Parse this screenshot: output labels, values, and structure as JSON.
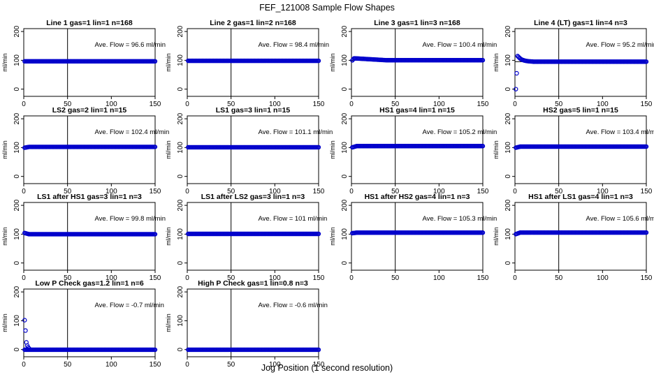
{
  "figure": {
    "title": "FEF_121008  Sample Flow Shapes",
    "xlabel": "Jog Position (1 second resolution)"
  },
  "colors": {
    "points": "#0000cc",
    "axis": "#000000"
  },
  "chart_data": [
    {
      "type": "scatter",
      "title": "Line 1 gas=1 lin=1 n=168",
      "annotation": "Ave. Flow =  96.6  ml/min",
      "ylabel": "ml/min",
      "xlim": [
        0,
        150
      ],
      "ylim": [
        -25,
        210
      ],
      "xticks": [
        0,
        50,
        100,
        150
      ],
      "yticks": [
        0,
        100,
        200
      ],
      "mean_line": 96.6,
      "reference_line": 50,
      "shape": {
        "flat": 96.6,
        "start": null,
        "peak": null
      }
    },
    {
      "type": "scatter",
      "title": "Line 2 gas=1 lin=2 n=168",
      "annotation": "Ave. Flow =  98.4  ml/min",
      "ylabel": "ml/min",
      "xlim": [
        0,
        150
      ],
      "ylim": [
        -25,
        210
      ],
      "xticks": [
        0,
        50,
        100,
        150
      ],
      "yticks": [
        0,
        100,
        200
      ],
      "mean_line": 98.4,
      "reference_line": 50,
      "shape": {
        "flat": 98.4,
        "start": null,
        "peak": null
      }
    },
    {
      "type": "scatter",
      "title": "Line 3 gas=1 lin=3 n=168",
      "annotation": "Ave. Flow =  100.4  ml/min",
      "ylabel": "ml/min",
      "xlim": [
        0,
        150
      ],
      "ylim": [
        -25,
        210
      ],
      "xticks": [
        0,
        50,
        100,
        150
      ],
      "yticks": [
        0,
        100,
        200
      ],
      "mean_line": 100.4,
      "reference_line": 50,
      "shape": {
        "flat": 100.4,
        "start": 96,
        "peak": 107
      }
    },
    {
      "type": "scatter",
      "title": "Line 4 (LT) gas=1 lin=4 n=3",
      "annotation": "Ave. Flow =  95.2  ml/min",
      "ylabel": "ml/min",
      "xlim": [
        0,
        150
      ],
      "ylim": [
        -25,
        210
      ],
      "xticks": [
        0,
        50,
        100,
        150
      ],
      "yticks": [
        0,
        100,
        200
      ],
      "mean_line": 95.2,
      "reference_line": 50,
      "shape": {
        "flat": 95.2,
        "start": 0,
        "peak": 115
      }
    },
    {
      "type": "scatter",
      "title": "LS2 gas=2 lin=1 n=15",
      "annotation": "Ave. Flow =  102.4  ml/min",
      "ylabel": "ml/min",
      "xlim": [
        0,
        150
      ],
      "ylim": [
        -25,
        210
      ],
      "xticks": [
        0,
        50,
        100,
        150
      ],
      "yticks": [
        0,
        100,
        200
      ],
      "mean_line": 102.4,
      "reference_line": 50,
      "shape": {
        "flat": 102.4,
        "start": 99,
        "peak": null
      }
    },
    {
      "type": "scatter",
      "title": "LS1 gas=3 lin=1 n=15",
      "annotation": "Ave. Flow =  101.1  ml/min",
      "ylabel": "ml/min",
      "xlim": [
        0,
        150
      ],
      "ylim": [
        -25,
        210
      ],
      "xticks": [
        0,
        50,
        100,
        150
      ],
      "yticks": [
        0,
        100,
        200
      ],
      "mean_line": 101.1,
      "reference_line": 50,
      "shape": {
        "flat": 101.1,
        "start": null,
        "peak": null
      }
    },
    {
      "type": "scatter",
      "title": "HS1 gas=4 lin=1 n=15",
      "annotation": "Ave. Flow =  105.2  ml/min",
      "ylabel": "ml/min",
      "xlim": [
        0,
        150
      ],
      "ylim": [
        -25,
        210
      ],
      "xticks": [
        0,
        50,
        100,
        150
      ],
      "yticks": [
        0,
        100,
        200
      ],
      "mean_line": 105.2,
      "reference_line": 50,
      "shape": {
        "flat": 105.2,
        "start": 100,
        "peak": null
      }
    },
    {
      "type": "scatter",
      "title": "HS2 gas=5 lin=1 n=15",
      "annotation": "Ave. Flow =  103.4  ml/min",
      "ylabel": "ml/min",
      "xlim": [
        0,
        150
      ],
      "ylim": [
        -25,
        210
      ],
      "xticks": [
        0,
        50,
        100,
        150
      ],
      "yticks": [
        0,
        100,
        200
      ],
      "mean_line": 103.4,
      "reference_line": 50,
      "shape": {
        "flat": 103.4,
        "start": 99,
        "peak": null
      }
    },
    {
      "type": "scatter",
      "title": "LS1 after HS1 gas=3 lin=1 n=3",
      "annotation": "Ave. Flow =  99.8  ml/min",
      "ylabel": "ml/min",
      "xlim": [
        0,
        150
      ],
      "ylim": [
        -25,
        210
      ],
      "xticks": [
        0,
        50,
        100,
        150
      ],
      "yticks": [
        0,
        100,
        200
      ],
      "mean_line": 99.8,
      "reference_line": 50,
      "shape": {
        "flat": 99.8,
        "start": 105,
        "peak": null
      }
    },
    {
      "type": "scatter",
      "title": "LS1 after LS2 gas=3 lin=1 n=3",
      "annotation": "Ave. Flow =  101  ml/min",
      "ylabel": "ml/min",
      "xlim": [
        0,
        150
      ],
      "ylim": [
        -25,
        210
      ],
      "xticks": [
        0,
        50,
        100,
        150
      ],
      "yticks": [
        0,
        100,
        200
      ],
      "mean_line": 101,
      "reference_line": 50,
      "shape": {
        "flat": 101,
        "start": null,
        "peak": null
      }
    },
    {
      "type": "scatter",
      "title": "HS1 after HS2 gas=4 lin=1 n=3",
      "annotation": "Ave. Flow =  105.3  ml/min",
      "ylabel": "ml/min",
      "xlim": [
        0,
        150
      ],
      "ylim": [
        -25,
        210
      ],
      "xticks": [
        0,
        50,
        100,
        150
      ],
      "yticks": [
        0,
        100,
        200
      ],
      "mean_line": 105.3,
      "reference_line": 50,
      "shape": {
        "flat": 105.3,
        "start": 103,
        "peak": null
      }
    },
    {
      "type": "scatter",
      "title": "HS1 after LS1 gas=4 lin=1 n=3",
      "annotation": "Ave. Flow =  105.6  ml/min",
      "ylabel": "ml/min",
      "xlim": [
        0,
        150
      ],
      "ylim": [
        -25,
        210
      ],
      "xticks": [
        0,
        50,
        100,
        150
      ],
      "yticks": [
        0,
        100,
        200
      ],
      "mean_line": 105.6,
      "reference_line": 50,
      "shape": {
        "flat": 105.6,
        "start": 99,
        "peak": null
      }
    },
    {
      "type": "scatter",
      "title": "Low P Check gas=1.2 lin=1 n=6",
      "annotation": "Ave. Flow =  -0.7  ml/min",
      "ylabel": "ml/min",
      "xlim": [
        0,
        150
      ],
      "ylim": [
        -25,
        210
      ],
      "xticks": [
        0,
        50,
        100,
        150
      ],
      "yticks": [
        0,
        100,
        200
      ],
      "mean_line": -0.7,
      "reference_line": 50,
      "points_extra": [
        [
          1,
          102
        ],
        [
          2,
          66
        ],
        [
          3,
          25
        ],
        [
          4,
          14
        ],
        [
          5,
          8
        ],
        [
          6,
          4
        ]
      ],
      "shape": {
        "flat": -0.7,
        "start": null,
        "peak": null
      }
    },
    {
      "type": "scatter",
      "title": "High P Check gas=1 lin=0.8 n=3",
      "annotation": "Ave. Flow =  -0.6  ml/min",
      "ylabel": "ml/min",
      "xlim": [
        0,
        150
      ],
      "ylim": [
        -25,
        210
      ],
      "xticks": [
        0,
        50,
        100,
        150
      ],
      "yticks": [
        0,
        100,
        200
      ],
      "mean_line": -0.6,
      "reference_line": 50,
      "shape": {
        "flat": -0.6,
        "start": null,
        "peak": null
      }
    }
  ]
}
